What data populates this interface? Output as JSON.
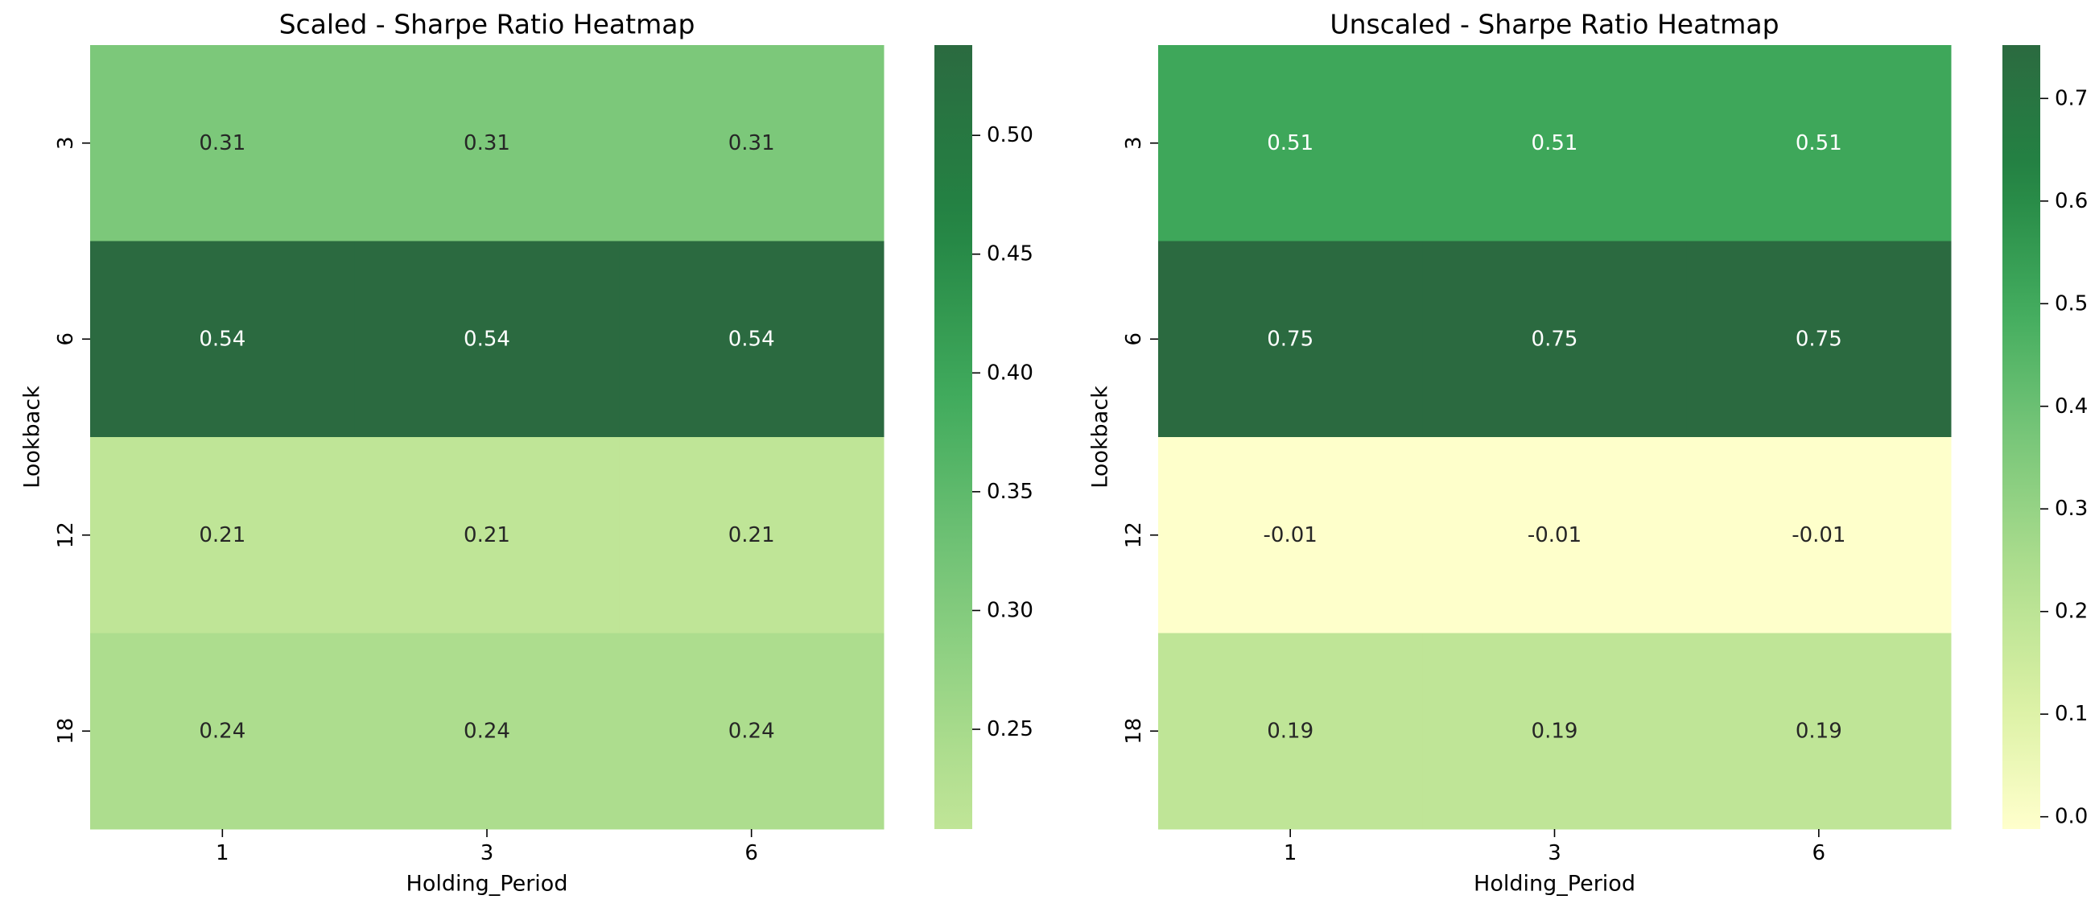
{
  "chart_data": [
    {
      "type": "heatmap",
      "title": "Scaled - Sharpe Ratio Heatmap",
      "xlabel": "Holding_Period",
      "ylabel": "Lookback",
      "x_categories": [
        "1",
        "3",
        "6"
      ],
      "y_categories": [
        "3",
        "6",
        "12",
        "18"
      ],
      "values": [
        [
          0.31,
          0.31,
          0.31
        ],
        [
          0.54,
          0.54,
          0.54
        ],
        [
          0.21,
          0.21,
          0.21
        ],
        [
          0.24,
          0.24,
          0.24
        ]
      ],
      "value_labels": [
        [
          "0.31",
          "0.31",
          "0.31"
        ],
        [
          "0.54",
          "0.54",
          "0.54"
        ],
        [
          "0.21",
          "0.21",
          "0.21"
        ],
        [
          "0.24",
          "0.24",
          "0.24"
        ]
      ],
      "colorbar": {
        "vmin": 0.208,
        "vmax": 0.538,
        "ticks": [
          0.25,
          0.3,
          0.35,
          0.4,
          0.45,
          0.5
        ],
        "tick_labels": [
          "0.25",
          "0.30",
          "0.35",
          "0.40",
          "0.45",
          "0.50"
        ]
      },
      "colormap": [
        "#ffffcc",
        "#d9f0a3",
        "#addd8e",
        "#78c679",
        "#41ab5d",
        "#238443",
        "#2b6a40"
      ],
      "colormap_offset": 0.26
    },
    {
      "type": "heatmap",
      "title": "Unscaled - Sharpe Ratio Heatmap",
      "xlabel": "Holding_Period",
      "ylabel": "Lookback",
      "x_categories": [
        "1",
        "3",
        "6"
      ],
      "y_categories": [
        "3",
        "6",
        "12",
        "18"
      ],
      "values": [
        [
          0.51,
          0.51,
          0.51
        ],
        [
          0.75,
          0.75,
          0.75
        ],
        [
          -0.01,
          -0.01,
          -0.01
        ],
        [
          0.19,
          0.19,
          0.19
        ]
      ],
      "value_labels": [
        [
          "0.51",
          "0.51",
          "0.51"
        ],
        [
          "0.75",
          "0.75",
          "0.75"
        ],
        [
          "-0.01",
          "-0.01",
          "-0.01"
        ],
        [
          "0.19",
          "0.19",
          "0.19"
        ]
      ],
      "colorbar": {
        "vmin": -0.012,
        "vmax": 0.752,
        "ticks": [
          0.0,
          0.1,
          0.2,
          0.3,
          0.4,
          0.5,
          0.6,
          0.7
        ],
        "tick_labels": [
          "0.0",
          "0.1",
          "0.2",
          "0.3",
          "0.4",
          "0.5",
          "0.6",
          "0.7"
        ]
      },
      "colormap": [
        "#ffffcc",
        "#d9f0a3",
        "#addd8e",
        "#78c679",
        "#41ab5d",
        "#238443",
        "#2b6a40"
      ],
      "colormap_offset": 0.0
    }
  ]
}
